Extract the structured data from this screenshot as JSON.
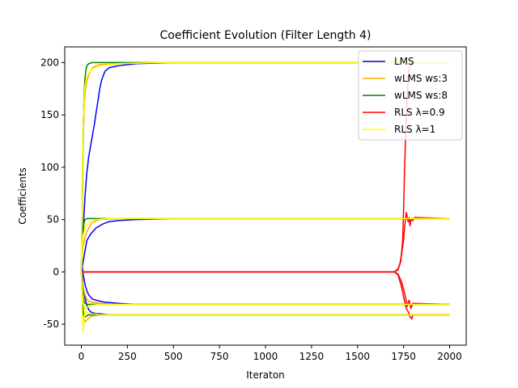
{
  "chart_data": {
    "type": "line",
    "title": "Coefficient Evolution (Filter Length 4)",
    "xlabel": "Iteraton",
    "ylabel": "Coefficients",
    "xlim": [
      -90,
      2090
    ],
    "ylim": [
      -70,
      215
    ],
    "xticks": [
      0,
      250,
      500,
      750,
      1000,
      1250,
      1500,
      1750,
      2000
    ],
    "yticks": [
      -50,
      0,
      50,
      100,
      150,
      200
    ],
    "grid": false,
    "legend_position": "top-right",
    "targets": [
      200,
      51,
      -31,
      -41
    ],
    "series": [
      {
        "name": "LMS",
        "color": "#0000ff",
        "curves": [
          [
            [
              0,
              0
            ],
            [
              10,
              40
            ],
            [
              20,
              72
            ],
            [
              30,
              95
            ],
            [
              40,
              110
            ],
            [
              50,
              120
            ],
            [
              60,
              130
            ],
            [
              70,
              140
            ],
            [
              80,
              152
            ],
            [
              90,
              163
            ],
            [
              100,
              175
            ],
            [
              110,
              183
            ],
            [
              120,
              188
            ],
            [
              130,
              192
            ],
            [
              150,
              195
            ],
            [
              200,
              197
            ],
            [
              300,
              199
            ],
            [
              500,
              200
            ],
            [
              2000,
              200
            ]
          ],
          [
            [
              0,
              0
            ],
            [
              10,
              10
            ],
            [
              20,
              20
            ],
            [
              30,
              30
            ],
            [
              40,
              33
            ],
            [
              50,
              36
            ],
            [
              60,
              38
            ],
            [
              70,
              40
            ],
            [
              80,
              42
            ],
            [
              90,
              43
            ],
            [
              100,
              44
            ],
            [
              120,
              46
            ],
            [
              150,
              48
            ],
            [
              200,
              49
            ],
            [
              300,
              50
            ],
            [
              500,
              51
            ],
            [
              2000,
              51
            ]
          ],
          [
            [
              0,
              0
            ],
            [
              5,
              5
            ],
            [
              10,
              -2
            ],
            [
              20,
              -12
            ],
            [
              30,
              -18
            ],
            [
              40,
              -22
            ],
            [
              50,
              -24
            ],
            [
              60,
              -26
            ],
            [
              80,
              -27
            ],
            [
              100,
              -28
            ],
            [
              130,
              -29
            ],
            [
              200,
              -30
            ],
            [
              300,
              -31
            ],
            [
              2000,
              -31
            ]
          ],
          [
            [
              0,
              0
            ],
            [
              5,
              -5
            ],
            [
              10,
              -15
            ],
            [
              20,
              -25
            ],
            [
              30,
              -32
            ],
            [
              40,
              -36
            ],
            [
              50,
              -38
            ],
            [
              60,
              -39
            ],
            [
              80,
              -40
            ],
            [
              100,
              -40
            ],
            [
              150,
              -41
            ],
            [
              2000,
              -41
            ]
          ]
        ]
      },
      {
        "name": "wLMS ws:3",
        "color": "#ffa500",
        "curves": [
          [
            [
              0,
              0
            ],
            [
              5,
              60
            ],
            [
              10,
              120
            ],
            [
              15,
              155
            ],
            [
              20,
              170
            ],
            [
              30,
              182
            ],
            [
              40,
              188
            ],
            [
              50,
              192
            ],
            [
              60,
              195
            ],
            [
              80,
              197
            ],
            [
              100,
              198
            ],
            [
              200,
              199
            ],
            [
              400,
              200
            ],
            [
              2000,
              200
            ]
          ],
          [
            [
              0,
              0
            ],
            [
              5,
              15
            ],
            [
              10,
              25
            ],
            [
              20,
              33
            ],
            [
              30,
              38
            ],
            [
              40,
              42
            ],
            [
              50,
              45
            ],
            [
              60,
              47
            ],
            [
              80,
              49
            ],
            [
              100,
              50
            ],
            [
              200,
              51
            ],
            [
              2000,
              51
            ]
          ],
          [
            [
              0,
              0
            ],
            [
              5,
              -8
            ],
            [
              10,
              -15
            ],
            [
              20,
              -22
            ],
            [
              30,
              -26
            ],
            [
              40,
              -28
            ],
            [
              60,
              -29
            ],
            [
              100,
              -30
            ],
            [
              200,
              -31
            ],
            [
              2000,
              -31
            ]
          ],
          [
            [
              0,
              0
            ],
            [
              5,
              -20
            ],
            [
              10,
              -35
            ],
            [
              15,
              -45
            ],
            [
              20,
              -48
            ],
            [
              30,
              -46
            ],
            [
              40,
              -44
            ],
            [
              60,
              -42
            ],
            [
              100,
              -41
            ],
            [
              2000,
              -41
            ]
          ]
        ]
      },
      {
        "name": "wLMS ws:8",
        "color": "#008000",
        "curves": [
          [
            [
              0,
              0
            ],
            [
              5,
              80
            ],
            [
              10,
              140
            ],
            [
              15,
              170
            ],
            [
              20,
              185
            ],
            [
              25,
              193
            ],
            [
              30,
              197
            ],
            [
              40,
              199
            ],
            [
              60,
              200
            ],
            [
              2000,
              200
            ]
          ],
          [
            [
              0,
              0
            ],
            [
              5,
              25
            ],
            [
              10,
              40
            ],
            [
              15,
              47
            ],
            [
              20,
              50
            ],
            [
              30,
              51
            ],
            [
              2000,
              51
            ]
          ],
          [
            [
              0,
              0
            ],
            [
              5,
              -15
            ],
            [
              10,
              -25
            ],
            [
              15,
              -29
            ],
            [
              20,
              -30
            ],
            [
              30,
              -31
            ],
            [
              2000,
              -31
            ]
          ],
          [
            [
              0,
              0
            ],
            [
              5,
              -25
            ],
            [
              10,
              -38
            ],
            [
              15,
              -42
            ],
            [
              20,
              -43
            ],
            [
              30,
              -42
            ],
            [
              40,
              -41
            ],
            [
              2000,
              -41
            ]
          ]
        ]
      },
      {
        "name": "RLS λ=0.9",
        "color": "#ff0000",
        "curves": [
          [
            [
              0,
              0
            ],
            [
              1700,
              0
            ],
            [
              1720,
              2
            ],
            [
              1735,
              10
            ],
            [
              1745,
              30
            ],
            [
              1750,
              60
            ],
            [
              1755,
              95
            ],
            [
              1760,
              125
            ],
            [
              1765,
              150
            ],
            [
              1770,
              170
            ],
            [
              1775,
              185
            ],
            [
              1780,
              193
            ],
            [
              1790,
              197
            ],
            [
              1800,
              199
            ],
            [
              1820,
              200
            ],
            [
              2000,
              200
            ]
          ],
          [
            [
              0,
              0
            ],
            [
              1700,
              0
            ],
            [
              1720,
              3
            ],
            [
              1730,
              8
            ],
            [
              1740,
              18
            ],
            [
              1750,
              30
            ],
            [
              1755,
              42
            ],
            [
              1760,
              50
            ],
            [
              1765,
              57
            ],
            [
              1770,
              52
            ],
            [
              1775,
              48
            ],
            [
              1780,
              52
            ],
            [
              1785,
              44
            ],
            [
              1790,
              50
            ],
            [
              1800,
              49
            ],
            [
              1810,
              52
            ],
            [
              2000,
              51
            ]
          ],
          [
            [
              0,
              0
            ],
            [
              1700,
              0
            ],
            [
              1720,
              -2
            ],
            [
              1740,
              -10
            ],
            [
              1755,
              -20
            ],
            [
              1765,
              -28
            ],
            [
              1770,
              -33
            ],
            [
              1780,
              -27
            ],
            [
              1790,
              -35
            ],
            [
              1800,
              -30
            ],
            [
              2000,
              -31
            ]
          ],
          [
            [
              0,
              0
            ],
            [
              1700,
              0
            ],
            [
              1720,
              -3
            ],
            [
              1740,
              -15
            ],
            [
              1755,
              -28
            ],
            [
              1765,
              -35
            ],
            [
              1775,
              -38
            ],
            [
              1785,
              -43
            ],
            [
              1795,
              -45
            ],
            [
              1800,
              -41
            ],
            [
              2000,
              -41
            ]
          ]
        ]
      },
      {
        "name": "RLS λ=1",
        "color": "#ffff00",
        "curves": [
          [
            [
              0,
              0
            ],
            [
              5,
              90
            ],
            [
              10,
              140
            ],
            [
              15,
              165
            ],
            [
              20,
              178
            ],
            [
              30,
              186
            ],
            [
              40,
              190
            ],
            [
              60,
              194
            ],
            [
              100,
              197
            ],
            [
              200,
              199
            ],
            [
              400,
              200
            ],
            [
              2000,
              200
            ]
          ],
          [
            [
              0,
              0
            ],
            [
              5,
              20
            ],
            [
              10,
              35
            ],
            [
              20,
              42
            ],
            [
              30,
              45
            ],
            [
              50,
              48
            ],
            [
              80,
              50
            ],
            [
              150,
              51
            ],
            [
              2000,
              51
            ]
          ],
          [
            [
              0,
              0
            ],
            [
              5,
              -40
            ],
            [
              10,
              -57
            ],
            [
              15,
              -45
            ],
            [
              20,
              -38
            ],
            [
              30,
              -34
            ],
            [
              50,
              -32
            ],
            [
              100,
              -31
            ],
            [
              2000,
              -31
            ]
          ],
          [
            [
              0,
              0
            ],
            [
              5,
              -20
            ],
            [
              10,
              -30
            ],
            [
              20,
              -36
            ],
            [
              30,
              -39
            ],
            [
              50,
              -40
            ],
            [
              100,
              -41
            ],
            [
              2000,
              -41
            ]
          ]
        ]
      }
    ]
  }
}
